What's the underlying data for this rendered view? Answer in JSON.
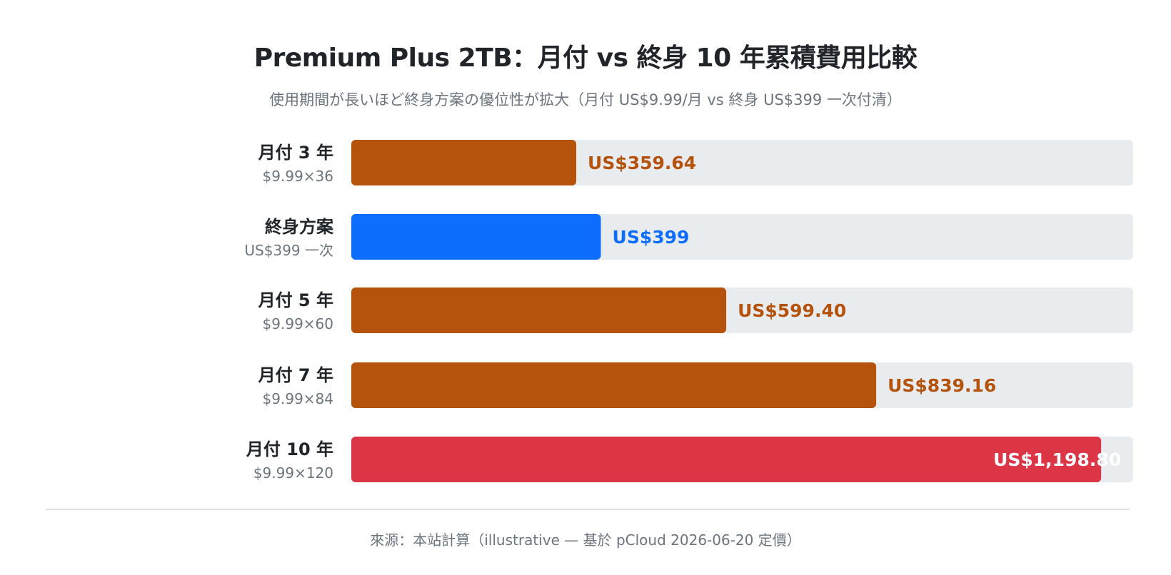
{
  "colors": {
    "monthly": "#b5530c",
    "lifetime": "#0d6efd",
    "highlight": "#dc3545",
    "track": "#e9ecef",
    "label_on_bar": "#ffffff"
  },
  "footer": "來源：本站計算（illustrative — 基於 pCloud 2026-06-20 定價）",
  "chart_data": {
    "type": "bar",
    "orientation": "horizontal",
    "title": "Premium Plus 2TB：月付 vs 終身 10 年累積費用比較",
    "subtitle": "使用期間が長いほど終身方案の優位性が拡大（月付 US$9.99/月 vs 終身 US$399 一次付清）",
    "xlim": [
      0,
      1250
    ],
    "grid": false,
    "legend": "none",
    "categories": [
      {
        "label": "月付 3 年",
        "sub": "$9.99×36",
        "value": 359.64,
        "value_label": "US$359.64",
        "color": "monthly"
      },
      {
        "label": "終身方案",
        "sub": "US$399 一次",
        "value": 399,
        "value_label": "US$399",
        "color": "lifetime"
      },
      {
        "label": "月付 5 年",
        "sub": "$9.99×60",
        "value": 599.4,
        "value_label": "US$599.40",
        "color": "monthly"
      },
      {
        "label": "月付 7 年",
        "sub": "$9.99×84",
        "value": 839.16,
        "value_label": "US$839.16",
        "color": "monthly"
      },
      {
        "label": "月付 10 年",
        "sub": "$9.99×120",
        "value": 1198.8,
        "value_label": "US$1,198.80",
        "color": "highlight"
      }
    ]
  }
}
